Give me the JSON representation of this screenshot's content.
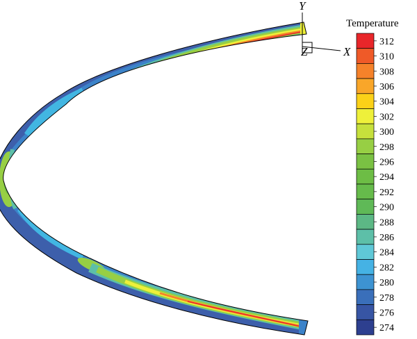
{
  "legend": {
    "title": "Temperature",
    "ticks": [
      "312",
      "310",
      "308",
      "306",
      "304",
      "302",
      "300",
      "298",
      "296",
      "294",
      "292",
      "290",
      "288",
      "286",
      "284",
      "282",
      "280",
      "278",
      "276",
      "274"
    ],
    "colors": [
      "#e8262a",
      "#ef5a28",
      "#f5822a",
      "#f9a629",
      "#fbd118",
      "#eef03a",
      "#c6e03c",
      "#97cf44",
      "#7ac143",
      "#6dbd45",
      "#66bb4b",
      "#5fb957",
      "#5cb885",
      "#5dbfa8",
      "#5fc8d7",
      "#45b2e4",
      "#3d93d2",
      "#3a6fba",
      "#3755a4",
      "#2d3f8f"
    ],
    "value_range": [
      274,
      312
    ]
  },
  "axes": {
    "x": "X",
    "y": "Y",
    "z": "Z"
  },
  "colors": {
    "cool": "#3d5fab",
    "cool_mid": "#3c83c9",
    "cyan": "#42b6e2",
    "green": "#7ac143",
    "yellow": "#eef03a",
    "orange": "#f5822a",
    "red": "#e8262a"
  }
}
